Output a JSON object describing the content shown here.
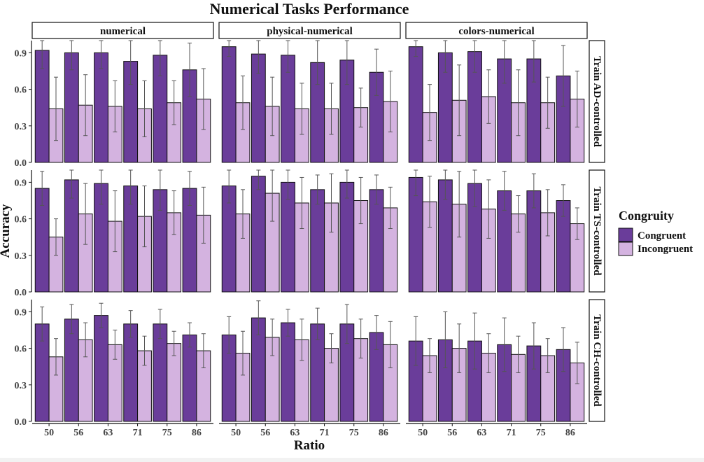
{
  "chart_data": {
    "type": "bar",
    "title": "Numerical Tasks Performance",
    "xlabel": "Ratio",
    "ylabel": "Accuracy",
    "ylim": [
      0,
      1.0
    ],
    "yticks": [
      "0.0",
      "0.3",
      "0.6",
      "0.9"
    ],
    "ytick_values": [
      0,
      0.3,
      0.6,
      0.9
    ],
    "categories": [
      "50",
      "56",
      "63",
      "71",
      "75",
      "86"
    ],
    "columns": [
      "numerical",
      "physical-numerical",
      "colors-numerical"
    ],
    "rows": [
      "Train AD-controlled",
      "Train TS-controlled",
      "Train CH-controlled"
    ],
    "legend": {
      "title": "Congruity",
      "placement": "right",
      "entries": [
        {
          "name": "Congruent",
          "color": "#6a3d9a"
        },
        {
          "name": "Incongruent",
          "color": "#d4b3e0"
        }
      ]
    },
    "panels": [
      {
        "row": "Train AD-controlled",
        "column": "numerical",
        "congruent": [
          0.92,
          0.9,
          0.9,
          0.83,
          0.88,
          0.76
        ],
        "congruent_err": [
          0.15,
          0.14,
          0.13,
          0.19,
          0.17,
          0.22
        ],
        "incongruent": [
          0.44,
          0.47,
          0.46,
          0.44,
          0.49,
          0.52
        ],
        "incongruent_err": [
          0.26,
          0.25,
          0.21,
          0.23,
          0.18,
          0.25
        ]
      },
      {
        "row": "Train AD-controlled",
        "column": "physical-numerical",
        "congruent": [
          0.95,
          0.89,
          0.88,
          0.82,
          0.84,
          0.74
        ],
        "congruent_err": [
          0.08,
          0.16,
          0.14,
          0.18,
          0.2,
          0.19
        ],
        "incongruent": [
          0.49,
          0.46,
          0.44,
          0.44,
          0.45,
          0.5
        ],
        "incongruent_err": [
          0.22,
          0.24,
          0.21,
          0.21,
          0.16,
          0.25
        ]
      },
      {
        "row": "Train AD-controlled",
        "column": "colors-numerical",
        "congruent": [
          0.95,
          0.9,
          0.91,
          0.85,
          0.85,
          0.71
        ],
        "congruent_err": [
          0.08,
          0.16,
          0.17,
          0.2,
          0.19,
          0.25
        ],
        "incongruent": [
          0.41,
          0.51,
          0.54,
          0.49,
          0.49,
          0.52
        ],
        "incongruent_err": [
          0.23,
          0.29,
          0.22,
          0.27,
          0.21,
          0.23
        ]
      },
      {
        "row": "Train TS-controlled",
        "column": "numerical",
        "congruent": [
          0.85,
          0.92,
          0.89,
          0.87,
          0.84,
          0.85
        ],
        "congruent_err": [
          0.14,
          0.15,
          0.17,
          0.15,
          0.17,
          0.14
        ],
        "incongruent": [
          0.45,
          0.64,
          0.58,
          0.62,
          0.65,
          0.63
        ],
        "incongruent_err": [
          0.15,
          0.25,
          0.25,
          0.25,
          0.18,
          0.23
        ]
      },
      {
        "row": "Train TS-controlled",
        "column": "physical-numerical",
        "congruent": [
          0.87,
          0.95,
          0.9,
          0.84,
          0.9,
          0.84
        ],
        "congruent_err": [
          0.14,
          0.11,
          0.14,
          0.12,
          0.13,
          0.12
        ],
        "incongruent": [
          0.64,
          0.81,
          0.73,
          0.73,
          0.75,
          0.69
        ],
        "incongruent_err": [
          0.2,
          0.23,
          0.21,
          0.24,
          0.19,
          0.17
        ]
      },
      {
        "row": "Train TS-controlled",
        "column": "colors-numerical",
        "congruent": [
          0.94,
          0.92,
          0.89,
          0.83,
          0.83,
          0.75
        ],
        "congruent_err": [
          0.15,
          0.16,
          0.19,
          0.16,
          0.14,
          0.13
        ],
        "incongruent": [
          0.74,
          0.72,
          0.68,
          0.64,
          0.65,
          0.56
        ],
        "incongruent_err": [
          0.21,
          0.27,
          0.24,
          0.15,
          0.19,
          0.13
        ]
      },
      {
        "row": "Train CH-controlled",
        "column": "numerical",
        "congruent": [
          0.8,
          0.84,
          0.87,
          0.8,
          0.8,
          0.71
        ],
        "congruent_err": [
          0.14,
          0.12,
          0.1,
          0.11,
          0.12,
          0.1
        ],
        "incongruent": [
          0.53,
          0.67,
          0.63,
          0.58,
          0.64,
          0.58
        ],
        "incongruent_err": [
          0.15,
          0.14,
          0.12,
          0.12,
          0.1,
          0.14
        ]
      },
      {
        "row": "Train CH-controlled",
        "column": "physical-numerical",
        "congruent": [
          0.71,
          0.85,
          0.81,
          0.8,
          0.8,
          0.73
        ],
        "congruent_err": [
          0.15,
          0.14,
          0.11,
          0.13,
          0.16,
          0.14
        ],
        "incongruent": [
          0.56,
          0.69,
          0.67,
          0.6,
          0.68,
          0.63
        ],
        "incongruent_err": [
          0.18,
          0.15,
          0.17,
          0.12,
          0.16,
          0.19
        ]
      },
      {
        "row": "Train CH-controlled",
        "column": "colors-numerical",
        "congruent": [
          0.66,
          0.67,
          0.66,
          0.63,
          0.62,
          0.59
        ],
        "congruent_err": [
          0.2,
          0.23,
          0.23,
          0.22,
          0.19,
          0.18
        ],
        "incongruent": [
          0.54,
          0.6,
          0.56,
          0.55,
          0.54,
          0.48
        ],
        "incongruent_err": [
          0.14,
          0.2,
          0.16,
          0.15,
          0.14,
          0.17
        ]
      }
    ]
  }
}
